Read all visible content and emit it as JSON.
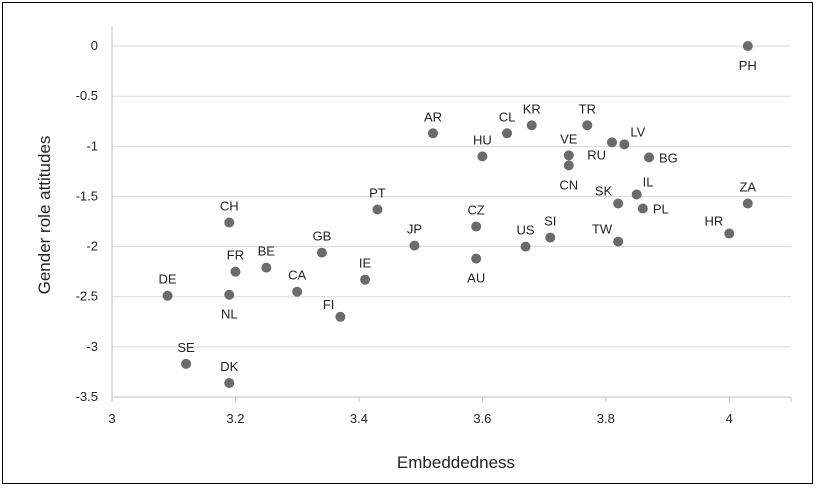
{
  "chart_data": {
    "type": "scatter",
    "title": "",
    "xlabel": "Embeddedness",
    "ylabel": "Gender role attitudes",
    "xlim": [
      3,
      4.1
    ],
    "ylim": [
      -3.5,
      0.2
    ],
    "xticks": [
      3,
      3.2,
      3.4,
      3.6,
      3.8,
      4
    ],
    "yticks": [
      0,
      -0.5,
      -1,
      -1.5,
      -2,
      -2.5,
      -3,
      -3.5
    ],
    "xtick_labels": [
      "3",
      "3.2",
      "3.4",
      "3.6",
      "3.8",
      "4"
    ],
    "ytick_labels": [
      "0",
      "-0.5",
      "-1",
      "-1.5",
      "-2",
      "-2.5",
      "-3",
      "-3.5"
    ],
    "grid": "horizontal",
    "marker_color": "#6b6b6b",
    "grid_color": "#d9d9d9",
    "points": [
      {
        "label": "PH",
        "x": 4.03,
        "y": 0.0,
        "pos": "below"
      },
      {
        "label": "AR",
        "x": 3.52,
        "y": -0.87,
        "pos": "above"
      },
      {
        "label": "CL",
        "x": 3.64,
        "y": -0.87,
        "pos": "above"
      },
      {
        "label": "KR",
        "x": 3.68,
        "y": -0.79,
        "pos": "above"
      },
      {
        "label": "TR",
        "x": 3.77,
        "y": -0.79,
        "pos": "above"
      },
      {
        "label": "HU",
        "x": 3.6,
        "y": -1.1,
        "pos": "above"
      },
      {
        "label": "VE",
        "x": 3.74,
        "y": -1.09,
        "pos": "above"
      },
      {
        "label": "CN",
        "x": 3.74,
        "y": -1.19,
        "pos": "below"
      },
      {
        "label": "RU",
        "x": 3.81,
        "y": -0.96,
        "pos": "belowleft"
      },
      {
        "label": "LV",
        "x": 3.83,
        "y": -0.98,
        "pos": "aboveright"
      },
      {
        "label": "BG",
        "x": 3.87,
        "y": -1.11,
        "pos": "right"
      },
      {
        "label": "SK",
        "x": 3.82,
        "y": -1.57,
        "pos": "aboveleft"
      },
      {
        "label": "IL",
        "x": 3.85,
        "y": -1.48,
        "pos": "aboveright"
      },
      {
        "label": "PL",
        "x": 3.86,
        "y": -1.62,
        "pos": "right"
      },
      {
        "label": "ZA",
        "x": 4.03,
        "y": -1.57,
        "pos": "above"
      },
      {
        "label": "HR",
        "x": 4.0,
        "y": -1.87,
        "pos": "aboveleft"
      },
      {
        "label": "TW",
        "x": 3.82,
        "y": -1.95,
        "pos": "aboveleft"
      },
      {
        "label": "SI",
        "x": 3.71,
        "y": -1.91,
        "pos": "above"
      },
      {
        "label": "US",
        "x": 3.67,
        "y": -2.0,
        "pos": "above"
      },
      {
        "label": "CZ",
        "x": 3.59,
        "y": -1.8,
        "pos": "above"
      },
      {
        "label": "AU",
        "x": 3.59,
        "y": -2.12,
        "pos": "below"
      },
      {
        "label": "JP",
        "x": 3.49,
        "y": -1.99,
        "pos": "above"
      },
      {
        "label": "PT",
        "x": 3.43,
        "y": -1.63,
        "pos": "above"
      },
      {
        "label": "IE",
        "x": 3.41,
        "y": -2.33,
        "pos": "above"
      },
      {
        "label": "FI",
        "x": 3.37,
        "y": -2.7,
        "pos": "aboveleft"
      },
      {
        "label": "GB",
        "x": 3.34,
        "y": -2.06,
        "pos": "above"
      },
      {
        "label": "CA",
        "x": 3.3,
        "y": -2.45,
        "pos": "above"
      },
      {
        "label": "BE",
        "x": 3.25,
        "y": -2.21,
        "pos": "above"
      },
      {
        "label": "FR",
        "x": 3.2,
        "y": -2.25,
        "pos": "above"
      },
      {
        "label": "NL",
        "x": 3.19,
        "y": -2.48,
        "pos": "below"
      },
      {
        "label": "CH",
        "x": 3.19,
        "y": -1.76,
        "pos": "above"
      },
      {
        "label": "DE",
        "x": 3.09,
        "y": -2.49,
        "pos": "above"
      },
      {
        "label": "SE",
        "x": 3.12,
        "y": -3.17,
        "pos": "above"
      },
      {
        "label": "DK",
        "x": 3.19,
        "y": -3.36,
        "pos": "above"
      }
    ]
  }
}
